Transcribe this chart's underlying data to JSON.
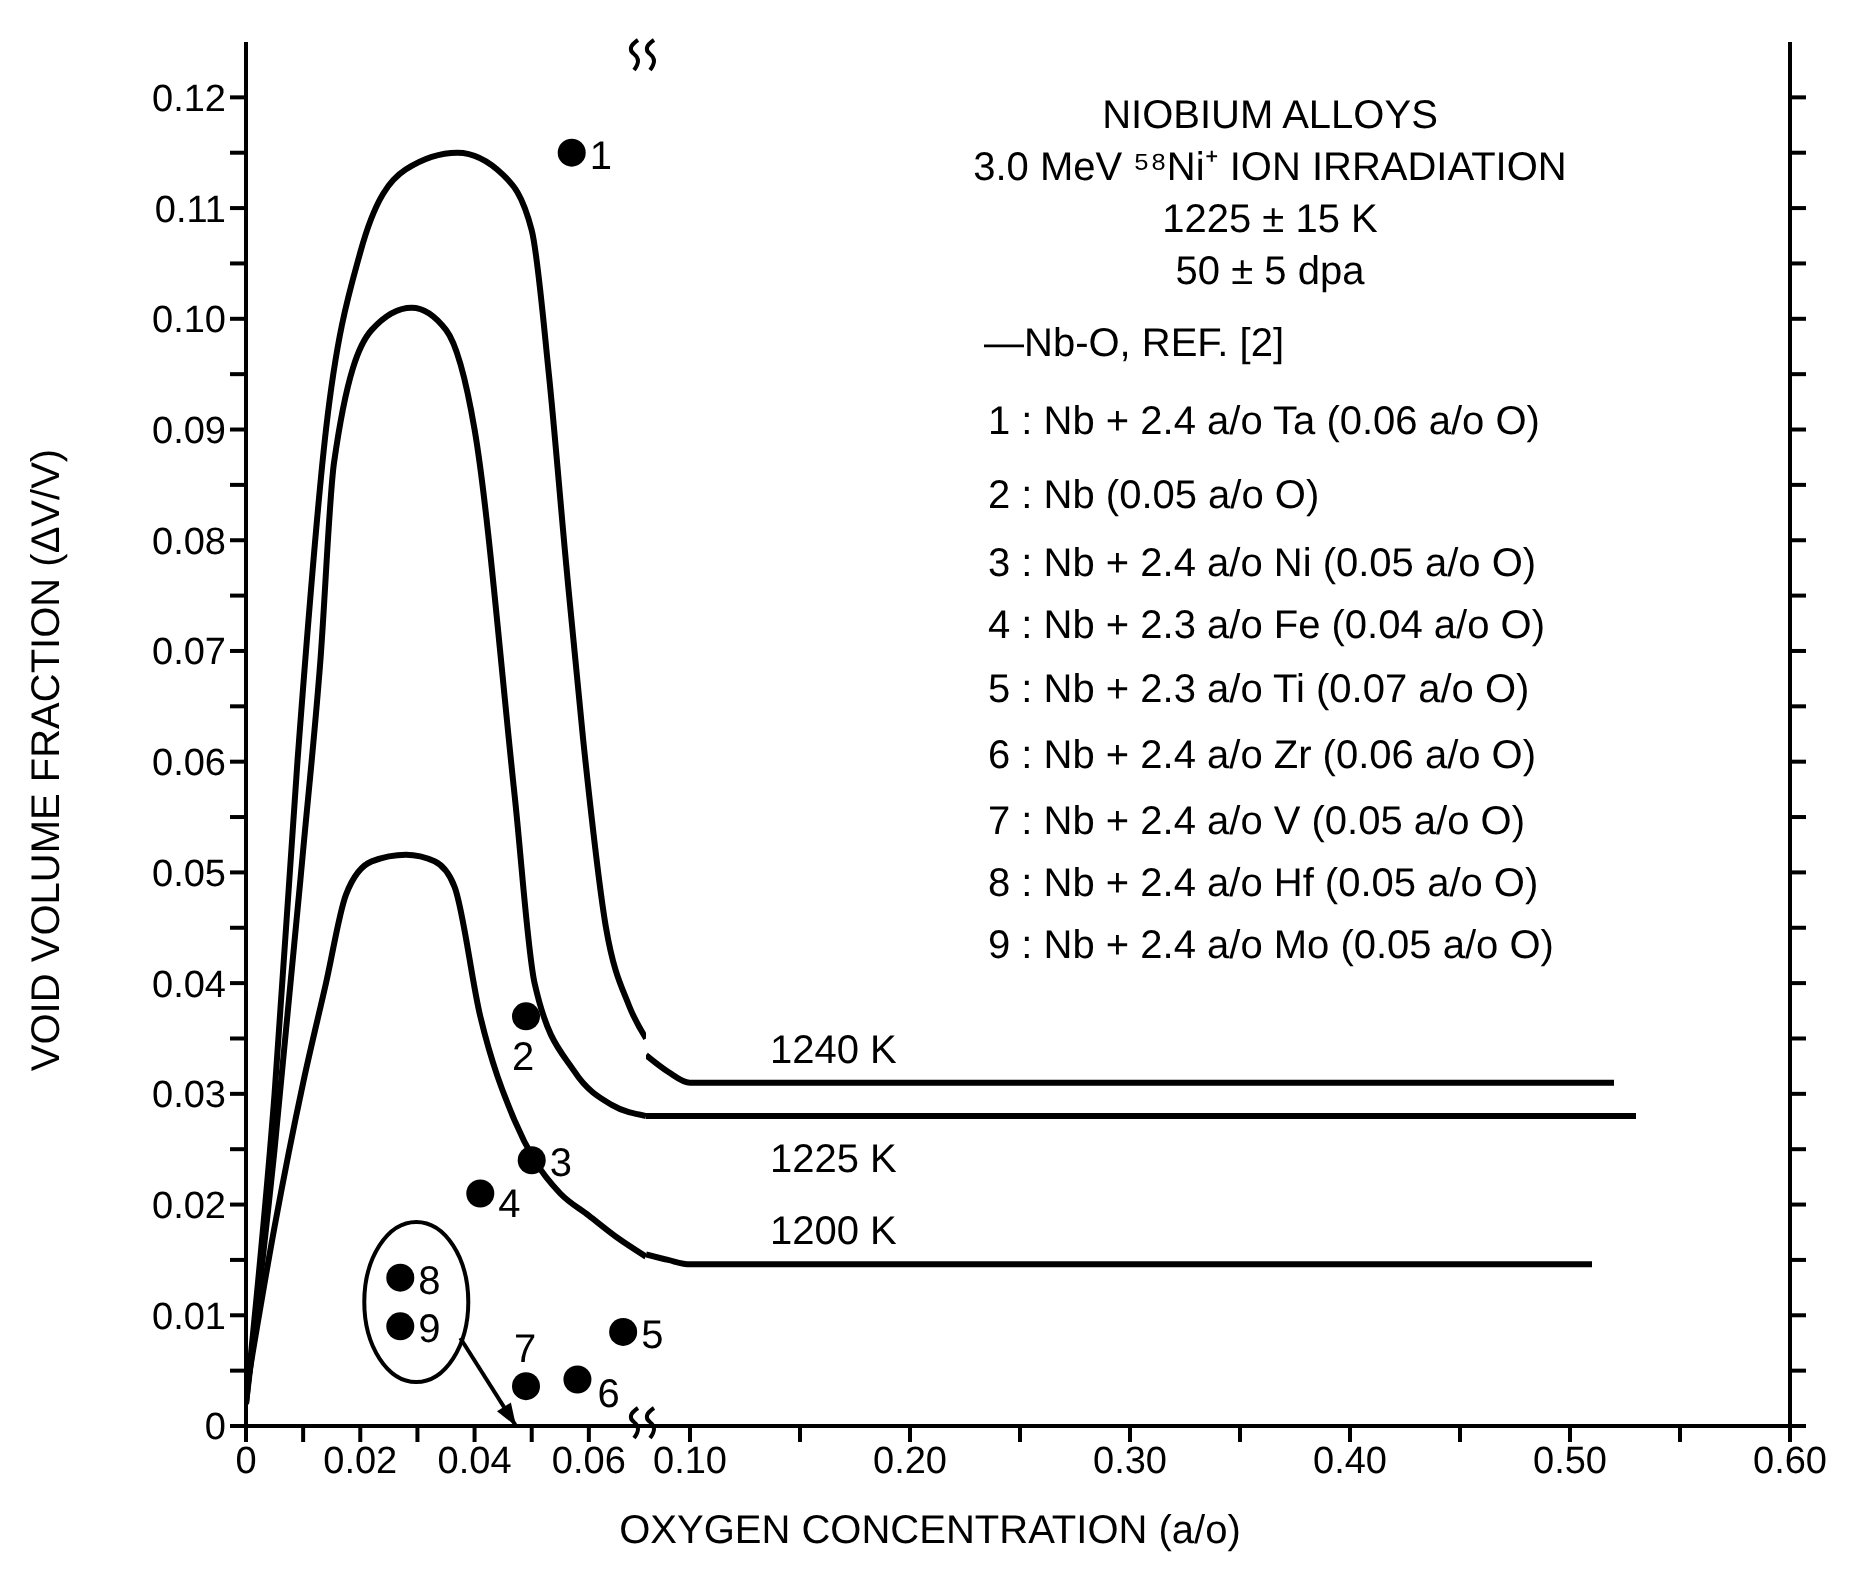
{
  "chart_data": [
    {
      "type": "line",
      "ylabel": "VOID VOLUME FRACTION (ΔV/V)",
      "xlim": [
        0,
        0.07
      ],
      "xticks": [
        0,
        {
          "value": 0.01,
          "label": null
        },
        {
          "value": 0.02,
          "label": "0.02"
        },
        {
          "value": 0.03,
          "label": null
        },
        {
          "value": 0.04,
          "label": "0.04"
        },
        {
          "value": 0.05,
          "label": null
        },
        {
          "value": 0.06,
          "label": "0.06"
        }
      ],
      "ylim": [
        0,
        0.125
      ],
      "yticks": [
        0,
        {
          "value": 0.005,
          "label": null
        },
        0.01,
        {
          "value": 0.015,
          "label": null
        },
        0.02,
        {
          "value": 0.025,
          "label": null
        },
        0.03,
        {
          "value": 0.035,
          "label": null
        },
        0.04,
        {
          "value": 0.045,
          "label": null
        },
        0.05,
        {
          "value": 0.055,
          "label": null
        },
        0.06,
        {
          "value": 0.065,
          "label": null
        },
        0.07,
        {
          "value": 0.075,
          "label": null
        },
        0.08,
        {
          "value": 0.085,
          "label": null
        },
        0.09,
        {
          "value": 0.095,
          "label": null
        },
        {
          "value": 0.1,
          "label": "0.10"
        },
        {
          "value": 0.105,
          "label": null
        },
        0.11,
        {
          "value": 0.115,
          "label": null
        },
        0.12
      ],
      "marker": "none",
      "line_style": "solid",
      "annotations": [
        {
          "text": "1",
          "x": 0.057,
          "y": 0.115
        },
        {
          "text": "2",
          "x": 0.049,
          "y": 0.037
        },
        {
          "text": "3",
          "x": 0.05,
          "y": 0.024
        },
        {
          "text": "4",
          "x": 0.041,
          "y": 0.021
        },
        {
          "text": "5",
          "x": 0.066,
          "y": 0.0085
        },
        {
          "text": "6",
          "x": 0.058,
          "y": 0.0042
        },
        {
          "text": "7",
          "x": 0.049,
          "y": 0.0036
        },
        {
          "text": "8",
          "x": 0.027,
          "y": 0.0134
        },
        {
          "text": "9",
          "x": 0.027,
          "y": 0.009
        }
      ],
      "series": [
        {
          "color": "#000000",
          "x": [
            0,
            0.005,
            0.009,
            0.014,
            0.02,
            0.028,
            0.037,
            0.045,
            0.05,
            0.053,
            0.056,
            0.059,
            0.063,
            0.067,
            0.07
          ],
          "values": [
            0.002,
            0.03,
            0.06,
            0.09,
            0.106,
            0.1135,
            0.115,
            0.113,
            0.108,
            0.095,
            0.078,
            0.062,
            0.045,
            0.038,
            0.035
          ]
        },
        {
          "color": "#000000",
          "x": [
            0,
            0.005,
            0.01,
            0.013,
            0.0154,
            0.022,
            0.029,
            0.035,
            0.04,
            0.047,
            0.0505,
            0.0575,
            0.064,
            0.07
          ],
          "values": [
            0.002,
            0.025,
            0.052,
            0.069,
            0.087,
            0.099,
            0.101,
            0.099,
            0.09,
            0.057,
            0.04,
            0.032,
            0.029,
            0.028
          ]
        },
        {
          "color": "#000000",
          "x": [
            0,
            0.005,
            0.01,
            0.014,
            0.0175,
            0.022,
            0.028,
            0.033,
            0.0365,
            0.041,
            0.047,
            0.0505,
            0.055,
            0.06,
            0.065,
            0.07
          ],
          "values": [
            0.003,
            0.018,
            0.031,
            0.04,
            0.048,
            0.051,
            0.0516,
            0.051,
            0.0487,
            0.037,
            0.0276,
            0.024,
            0.021,
            0.019,
            0.017,
            0.0153
          ]
        },
        {
          "type": "scatter",
          "marker": "circle",
          "color": "#000000",
          "x": [
            0.057,
            0.049,
            0.05,
            0.041,
            0.066,
            0.058,
            0.049,
            0.027,
            0.027
          ],
          "values": [
            0.115,
            0.037,
            0.024,
            0.021,
            0.0085,
            0.0042,
            0.0036,
            0.0134,
            0.009
          ]
        }
      ]
    },
    {
      "type": "line",
      "xlabel": "OXYGEN CONCENTRATION (a/o)",
      "tick_labels": "x",
      "xlim": [
        0.08,
        0.6
      ],
      "xticks": [
        {
          "value": 0.1,
          "label": "0.10"
        },
        {
          "value": 0.15,
          "label": null
        },
        {
          "value": 0.2,
          "label": "0.20"
        },
        {
          "value": 0.25,
          "label": null
        },
        {
          "value": 0.3,
          "label": "0.30"
        },
        {
          "value": 0.35,
          "label": null
        },
        {
          "value": 0.4,
          "label": "0.40"
        },
        {
          "value": 0.45,
          "label": null
        },
        {
          "value": 0.5,
          "label": "0.50"
        },
        {
          "value": 0.55,
          "label": null
        },
        {
          "value": 0.6,
          "label": "0.60"
        }
      ],
      "ylim": [
        0,
        0.125
      ],
      "yticks": [
        0,
        0.005,
        0.01,
        0.015,
        0.02,
        0.025,
        0.03,
        0.035,
        0.04,
        0.045,
        0.05,
        0.055,
        0.06,
        0.065,
        0.07,
        0.075,
        0.08,
        0.085,
        0.09,
        0.095,
        0.1,
        0.105,
        0.11,
        0.115,
        0.12
      ],
      "marker": "none",
      "line_style": "solid",
      "annotations": [
        "NIOBIUM ALLOYS",
        "3.0 MeV ⁵⁸Ni⁺ ION IRRADIATION",
        "1225 ± 15 K",
        "50 ± 5 dpa",
        "—Nb-O, REF. [2]",
        "1 : Nb + 2.4 a/o Ta (0.06 a/o O)",
        "2 : Nb (0.05 a/o O)",
        "3 : Nb + 2.4 a/o Ni (0.05 a/o O)",
        "4 : Nb + 2.3 a/o Fe (0.04 a/o O)",
        "5 : Nb + 2.3 a/o Ti (0.07 a/o O)",
        "6 : Nb + 2.4 a/o Zr (0.06 a/o O)",
        "7 : Nb + 2.4 a/o V (0.05 a/o O)",
        "8 : Nb + 2.4 a/o Hf (0.05 a/o O)",
        "9 : Nb + 2.4 a/o Mo (0.05 a/o O)"
      ],
      "series": [
        {
          "name": "1240 K",
          "color": "#000000",
          "x": [
            0.08,
            0.09,
            0.1,
            0.52
          ],
          "values": [
            0.0335,
            0.032,
            0.031,
            0.031
          ]
        },
        {
          "name": "1225 K",
          "color": "#000000",
          "x": [
            0.08,
            0.53
          ],
          "values": [
            0.028,
            0.028
          ]
        },
        {
          "name": "1200 K",
          "color": "#000000",
          "x": [
            0.08,
            0.09,
            0.1,
            0.51
          ],
          "values": [
            0.0155,
            0.015,
            0.0146,
            0.0146
          ]
        }
      ]
    }
  ]
}
